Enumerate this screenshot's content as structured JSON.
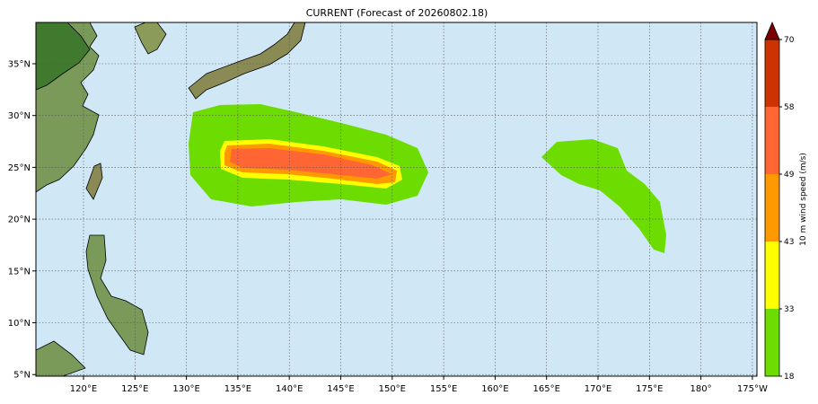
{
  "title": "CURRENT (Forecast of 20260802.18)",
  "map": {
    "lon_labels": [
      "120°E",
      "125°E",
      "130°E",
      "135°E",
      "140°E",
      "145°E",
      "150°E",
      "155°E",
      "160°E",
      "165°E",
      "170°E",
      "175°E",
      "180°",
      "175°W"
    ],
    "lat_labels": [
      "35°N",
      "30°N",
      "25°N",
      "20°N",
      "15°N",
      "10°N",
      "5°N"
    ]
  },
  "colorbar": {
    "label": "10 m wind speed (m/s)",
    "levels": [
      18,
      33,
      43,
      49,
      58,
      70
    ],
    "colors": [
      "#6ddc00",
      "#ffff00",
      "#ff9900",
      "#ff6633",
      "#cc3300"
    ],
    "extend_color": "#7a0000"
  }
}
